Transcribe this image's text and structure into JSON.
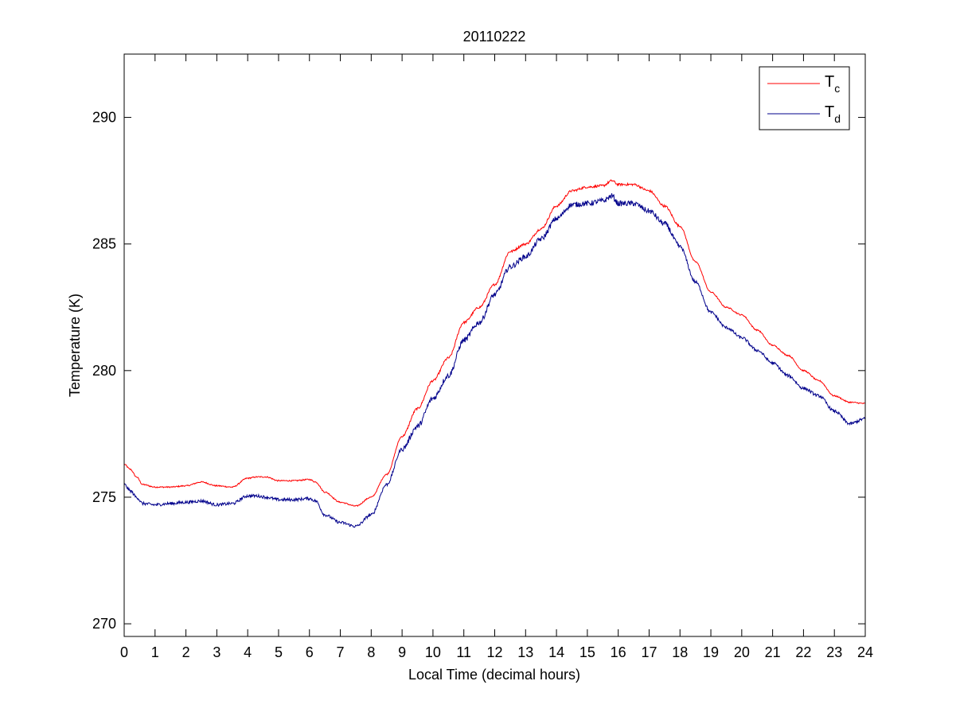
{
  "chart_data": {
    "type": "line",
    "title": "20110222",
    "xlabel": "Local Time (decimal hours)",
    "ylabel": "Temperature (K)",
    "xlim": [
      0,
      24
    ],
    "ylim": [
      269.5,
      292.5
    ],
    "x_ticks": [
      0,
      1,
      2,
      3,
      4,
      5,
      6,
      7,
      8,
      9,
      10,
      11,
      12,
      13,
      14,
      15,
      16,
      17,
      18,
      19,
      20,
      21,
      22,
      23,
      24
    ],
    "y_ticks": [
      270,
      275,
      280,
      285,
      290
    ],
    "grid": false,
    "legend_position": "top-right",
    "series": [
      {
        "name": "T",
        "subscript": "c",
        "color": "#ff0000",
        "x": [
          0,
          0.2,
          0.4,
          0.6,
          1.0,
          1.5,
          2.0,
          2.5,
          3.0,
          3.5,
          4.0,
          4.3,
          4.6,
          5.0,
          5.5,
          6.0,
          6.2,
          6.5,
          7.0,
          7.5,
          8.0,
          8.5,
          9.0,
          9.5,
          10.0,
          10.5,
          11.0,
          11.5,
          12.0,
          12.5,
          13.0,
          13.5,
          14.0,
          14.5,
          15.0,
          15.5,
          15.8,
          16.0,
          16.5,
          17.0,
          17.5,
          18.0,
          18.5,
          19.0,
          19.5,
          20.0,
          20.5,
          21.0,
          21.5,
          22.0,
          22.5,
          23.0,
          23.5,
          24.0
        ],
        "y": [
          276.3,
          276.1,
          275.8,
          275.5,
          275.4,
          275.4,
          275.45,
          275.6,
          275.45,
          275.4,
          275.75,
          275.8,
          275.8,
          275.65,
          275.65,
          275.7,
          275.6,
          275.2,
          274.8,
          274.65,
          275.0,
          275.9,
          277.4,
          278.5,
          279.6,
          280.5,
          281.9,
          282.5,
          283.4,
          284.7,
          285.0,
          285.6,
          286.5,
          287.1,
          287.25,
          287.3,
          287.5,
          287.35,
          287.35,
          287.1,
          286.5,
          285.7,
          284.3,
          283.1,
          282.5,
          282.2,
          281.6,
          281.0,
          280.6,
          280.0,
          279.6,
          279.0,
          278.75,
          278.7
        ]
      },
      {
        "name": "T",
        "subscript": "d",
        "color": "#00008b",
        "x": [
          0,
          0.2,
          0.4,
          0.6,
          1.0,
          1.5,
          2.0,
          2.5,
          3.0,
          3.5,
          4.0,
          4.3,
          4.6,
          5.0,
          5.5,
          6.0,
          6.2,
          6.5,
          7.0,
          7.5,
          8.0,
          8.5,
          9.0,
          9.5,
          10.0,
          10.5,
          11.0,
          11.5,
          12.0,
          12.5,
          13.0,
          13.5,
          14.0,
          14.5,
          15.0,
          15.5,
          15.8,
          16.0,
          16.5,
          17.0,
          17.5,
          18.0,
          18.5,
          19.0,
          19.5,
          20.0,
          20.5,
          21.0,
          21.5,
          22.0,
          22.5,
          23.0,
          23.5,
          24.0
        ],
        "y": [
          275.5,
          275.25,
          275.0,
          274.75,
          274.7,
          274.75,
          274.8,
          274.85,
          274.7,
          274.75,
          275.05,
          275.05,
          275.0,
          274.9,
          274.9,
          274.95,
          274.85,
          274.3,
          274.0,
          273.85,
          274.3,
          275.5,
          276.9,
          277.8,
          278.9,
          279.8,
          281.2,
          281.9,
          283.0,
          284.1,
          284.5,
          285.2,
          286.0,
          286.55,
          286.6,
          286.7,
          286.9,
          286.6,
          286.6,
          286.3,
          285.8,
          284.9,
          283.5,
          282.3,
          281.7,
          281.3,
          280.8,
          280.3,
          279.8,
          279.3,
          279.0,
          278.4,
          277.9,
          278.1
        ]
      }
    ]
  }
}
